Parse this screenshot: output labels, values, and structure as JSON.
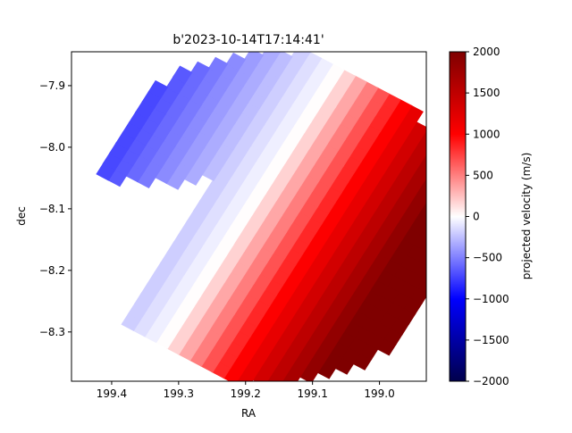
{
  "chart_data": {
    "type": "heatmap",
    "title": "b'2023-10-14T17:14:41'",
    "xlabel": "RA",
    "ylabel": "dec",
    "xlim": [
      199.46,
      198.93
    ],
    "ylim": [
      -8.38,
      -7.845
    ],
    "x_ticks": [
      {
        "value": 199.4,
        "label": "199.4"
      },
      {
        "value": 199.3,
        "label": "199.3"
      },
      {
        "value": 199.2,
        "label": "199.2"
      },
      {
        "value": 199.1,
        "label": "199.1"
      },
      {
        "value": 199.0,
        "label": "199.0"
      }
    ],
    "y_ticks": [
      {
        "value": -7.9,
        "label": "−7.9"
      },
      {
        "value": -8.0,
        "label": "−8.0"
      },
      {
        "value": -8.1,
        "label": "−8.1"
      },
      {
        "value": -8.2,
        "label": "−8.2"
      },
      {
        "value": -8.3,
        "label": "−8.3"
      }
    ],
    "colorbar": {
      "label": "projected velocity (m/s)",
      "range": [
        -2000,
        2000
      ],
      "colormap": "seismic",
      "ticks": [
        {
          "value": 2000,
          "label": "2000"
        },
        {
          "value": 1500,
          "label": "1500"
        },
        {
          "value": 1000,
          "label": "1000"
        },
        {
          "value": 500,
          "label": "500"
        },
        {
          "value": 0,
          "label": "0"
        },
        {
          "value": -500,
          "label": "−500"
        },
        {
          "value": -1000,
          "label": "−1000"
        },
        {
          "value": -1500,
          "label": "−1500"
        },
        {
          "value": -2000,
          "label": "−2000"
        }
      ]
    },
    "velocity_field": {
      "disk_center_ra": 199.16,
      "disk_center_dec": -8.115,
      "disk_radius_deg": 0.27,
      "rotation_axis_angle_deg": 30,
      "max_velocity": 2000,
      "min_velocity": -1050,
      "zero_line_ra_at_center": 199.2
    }
  },
  "colors": {
    "background": "#ffffff",
    "axis": "#000000",
    "cmap_low": "#00004c",
    "cmap_mid": "#ffffff",
    "cmap_high": "#7f0000"
  }
}
